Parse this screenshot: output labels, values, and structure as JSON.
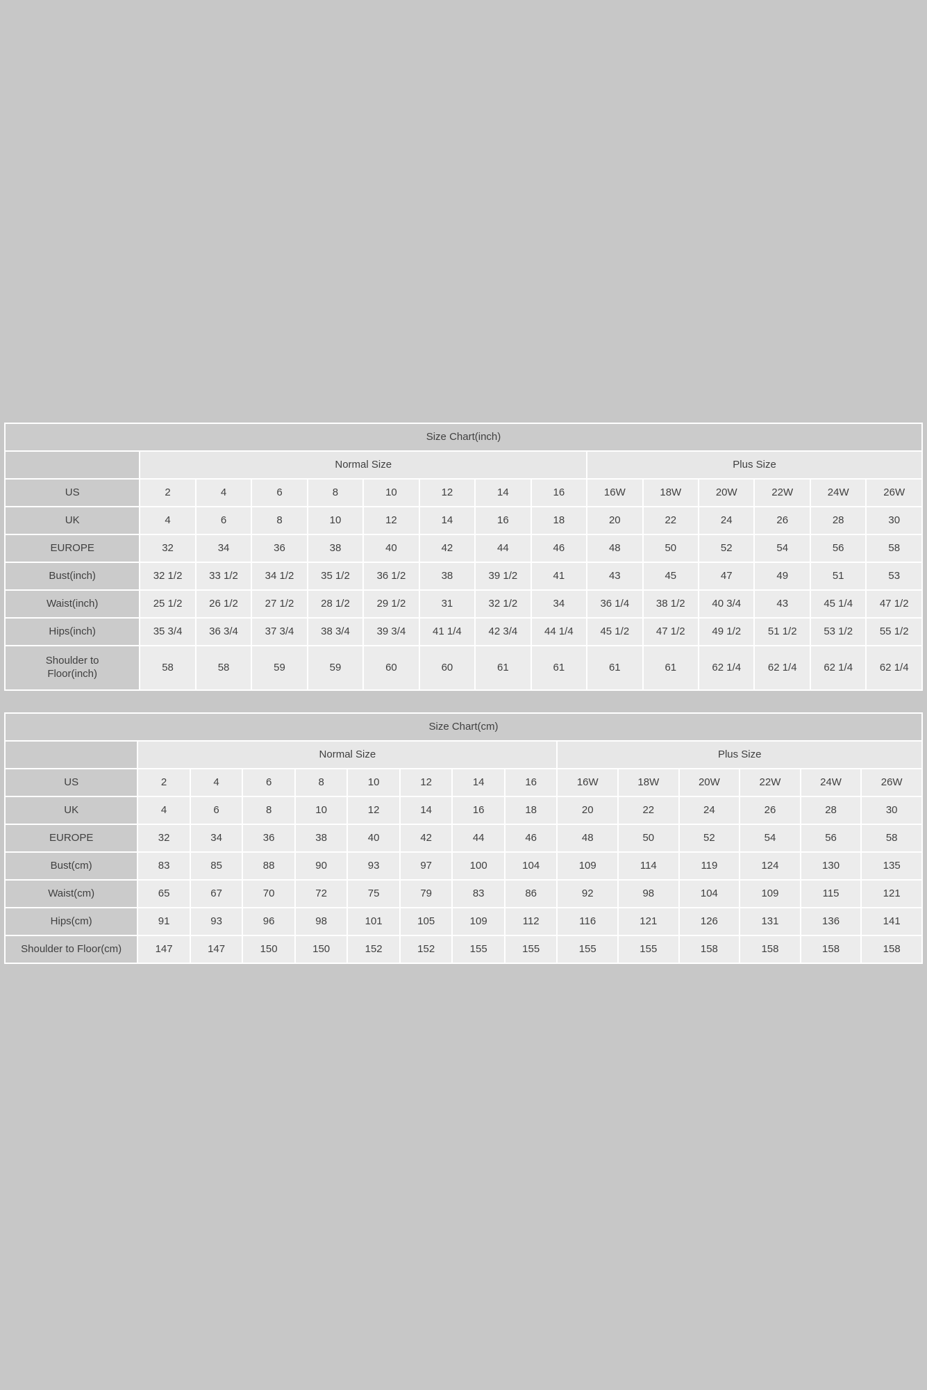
{
  "colors": {
    "page_background": "#c7c7c7",
    "title_band": "#cbcbcb",
    "label_cell": "#cbcbcb",
    "group_band": "#e7e7e7",
    "data_cell": "#ececec",
    "cell_border": "#ffffff",
    "text": "#3f3f3f"
  },
  "tables": [
    {
      "title": "Size Chart(inch)",
      "groups": [
        {
          "label": "",
          "span": 1
        },
        {
          "label": "Normal Size",
          "span": 8
        },
        {
          "label": "Plus Size",
          "span": 6
        }
      ],
      "rows": [
        {
          "label": "US",
          "values": [
            "2",
            "4",
            "6",
            "8",
            "10",
            "12",
            "14",
            "16",
            "16W",
            "18W",
            "20W",
            "22W",
            "24W",
            "26W"
          ]
        },
        {
          "label": "UK",
          "values": [
            "4",
            "6",
            "8",
            "10",
            "12",
            "14",
            "16",
            "18",
            "20",
            "22",
            "24",
            "26",
            "28",
            "30"
          ]
        },
        {
          "label": "EUROPE",
          "values": [
            "32",
            "34",
            "36",
            "38",
            "40",
            "42",
            "44",
            "46",
            "48",
            "50",
            "52",
            "54",
            "56",
            "58"
          ]
        },
        {
          "label": "Bust(inch)",
          "values": [
            "32 1/2",
            "33 1/2",
            "34 1/2",
            "35 1/2",
            "36 1/2",
            "38",
            "39 1/2",
            "41",
            "43",
            "45",
            "47",
            "49",
            "51",
            "53"
          ]
        },
        {
          "label": "Waist(inch)",
          "values": [
            "25 1/2",
            "26 1/2",
            "27 1/2",
            "28 1/2",
            "29 1/2",
            "31",
            "32 1/2",
            "34",
            "36 1/4",
            "38 1/2",
            "40 3/4",
            "43",
            "45 1/4",
            "47 1/2"
          ]
        },
        {
          "label": "Hips(inch)",
          "values": [
            "35 3/4",
            "36 3/4",
            "37 3/4",
            "38 3/4",
            "39 3/4",
            "41 1/4",
            "42 3/4",
            "44 1/4",
            "45 1/2",
            "47 1/2",
            "49 1/2",
            "51 1/2",
            "53 1/2",
            "55 1/2"
          ]
        },
        {
          "label": "Shoulder to Floor(inch)",
          "values": [
            "58",
            "58",
            "59",
            "59",
            "60",
            "60",
            "61",
            "61",
            "61",
            "61",
            "62 1/4",
            "62 1/4",
            "62 1/4",
            "62 1/4"
          ]
        }
      ]
    },
    {
      "title": "Size Chart(cm)",
      "groups": [
        {
          "label": "",
          "span": 1
        },
        {
          "label": "Normal Size",
          "span": 8
        },
        {
          "label": "Plus Size",
          "span": 6
        }
      ],
      "rows": [
        {
          "label": "US",
          "values": [
            "2",
            "4",
            "6",
            "8",
            "10",
            "12",
            "14",
            "16",
            "16W",
            "18W",
            "20W",
            "22W",
            "24W",
            "26W"
          ]
        },
        {
          "label": "UK",
          "values": [
            "4",
            "6",
            "8",
            "10",
            "12",
            "14",
            "16",
            "18",
            "20",
            "22",
            "24",
            "26",
            "28",
            "30"
          ]
        },
        {
          "label": "EUROPE",
          "values": [
            "32",
            "34",
            "36",
            "38",
            "40",
            "42",
            "44",
            "46",
            "48",
            "50",
            "52",
            "54",
            "56",
            "58"
          ]
        },
        {
          "label": "Bust(cm)",
          "values": [
            "83",
            "85",
            "88",
            "90",
            "93",
            "97",
            "100",
            "104",
            "109",
            "114",
            "119",
            "124",
            "130",
            "135"
          ]
        },
        {
          "label": "Waist(cm)",
          "values": [
            "65",
            "67",
            "70",
            "72",
            "75",
            "79",
            "83",
            "86",
            "92",
            "98",
            "104",
            "109",
            "115",
            "121"
          ]
        },
        {
          "label": "Hips(cm)",
          "values": [
            "91",
            "93",
            "96",
            "98",
            "101",
            "105",
            "109",
            "112",
            "116",
            "121",
            "126",
            "131",
            "136",
            "141"
          ]
        },
        {
          "label": "Shoulder to Floor(cm)",
          "values": [
            "147",
            "147",
            "150",
            "150",
            "152",
            "152",
            "155",
            "155",
            "155",
            "155",
            "158",
            "158",
            "158",
            "158"
          ]
        }
      ]
    }
  ]
}
